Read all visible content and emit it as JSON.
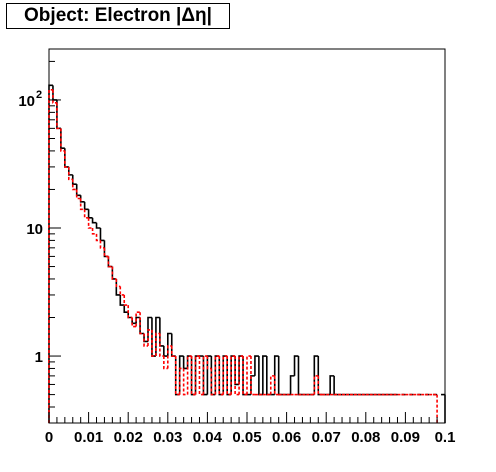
{
  "title": "Object: Electron |Δη|",
  "chart_data": {
    "type": "line",
    "title": "Object: Electron |Δη|",
    "xlabel": "",
    "ylabel": "",
    "xlim": [
      0,
      0.1
    ],
    "ylim": [
      0.3,
      250
    ],
    "yscale": "log",
    "grid": false,
    "x_ticks": [
      "0",
      "0.01",
      "0.02",
      "0.03",
      "0.04",
      "0.05",
      "0.06",
      "0.07",
      "0.08",
      "0.09",
      "0.1"
    ],
    "y_ticks": [
      {
        "value": 1,
        "label": "1"
      },
      {
        "value": 10,
        "label": "10"
      },
      {
        "value": 100,
        "label": "10",
        "exponent": "2"
      }
    ],
    "series": [
      {
        "color": "#000000",
        "style": "solid",
        "x": [
          0.0005,
          0.0015,
          0.0025,
          0.0035,
          0.0045,
          0.0055,
          0.0065,
          0.0075,
          0.0085,
          0.0095,
          0.0105,
          0.0115,
          0.0125,
          0.0135,
          0.0145,
          0.0155,
          0.0165,
          0.0175,
          0.0185,
          0.0195,
          0.0205,
          0.0215,
          0.0225,
          0.0235,
          0.0245,
          0.0255,
          0.0265,
          0.0275,
          0.0285,
          0.0295,
          0.0305,
          0.0315,
          0.0325,
          0.0335,
          0.0345,
          0.0355,
          0.0365,
          0.0375,
          0.0385,
          0.0395,
          0.0405,
          0.0415,
          0.0425,
          0.0435,
          0.0445,
          0.0455,
          0.0465,
          0.0475,
          0.0485,
          0.0495,
          0.0505,
          0.0515,
          0.0525,
          0.0535,
          0.0545,
          0.0555,
          0.0565,
          0.0575,
          0.0585,
          0.0595,
          0.0605,
          0.0615,
          0.0625,
          0.0635,
          0.0645,
          0.0655,
          0.0665,
          0.0675,
          0.0685,
          0.0695,
          0.0705,
          0.0715,
          0.0725,
          0.0735,
          0.0745,
          0.0755,
          0.0765,
          0.0775,
          0.0785,
          0.0795,
          0.0805,
          0.0815,
          0.0825,
          0.0835,
          0.0845,
          0.0855,
          0.0865,
          0.0875,
          0.0895,
          0.0915,
          0.0935,
          0.0955,
          0.0975,
          0.0995
        ],
        "values": [
          130,
          100,
          60,
          42,
          30,
          26,
          22,
          18,
          16,
          14,
          12,
          11,
          10,
          8,
          6,
          5,
          4,
          3,
          2.5,
          2.2,
          2,
          1.8,
          2,
          1.5,
          1.3,
          2,
          1,
          2,
          1.2,
          1,
          1.5,
          1,
          0.5,
          1,
          0.8,
          1,
          0.5,
          1,
          1,
          0.5,
          1,
          0.5,
          1,
          0.5,
          1,
          0.5,
          1,
          0.6,
          1,
          0.5,
          0.5,
          0.7,
          1,
          0.5,
          1,
          0.5,
          0.5,
          1,
          0.5,
          0.5,
          0.5,
          0.7,
          1,
          0.5,
          0.5,
          0.5,
          0.5,
          1,
          0.5,
          0.5,
          0.5,
          0.7,
          0.5,
          0.5,
          0.5,
          0.5,
          0.5,
          0.5,
          0.5,
          0.5,
          0.5,
          0.5,
          0.5,
          0.5,
          0.5,
          0.5,
          0.5,
          0.5,
          0.5,
          0.5,
          0.5,
          0.5,
          0.5,
          0.5
        ]
      },
      {
        "color": "#ff0000",
        "style": "dashed",
        "x": [
          0.0005,
          0.0015,
          0.0025,
          0.0035,
          0.0045,
          0.0055,
          0.0065,
          0.0075,
          0.0085,
          0.0095,
          0.0105,
          0.0115,
          0.0125,
          0.0135,
          0.0145,
          0.0155,
          0.0165,
          0.0175,
          0.0185,
          0.0195,
          0.0205,
          0.0215,
          0.0225,
          0.0235,
          0.0245,
          0.0255,
          0.0265,
          0.0275,
          0.0285,
          0.0295,
          0.0305,
          0.0315,
          0.0325,
          0.0335,
          0.0345,
          0.0355,
          0.0365,
          0.0375,
          0.0385,
          0.0395,
          0.0405,
          0.0415,
          0.0425,
          0.0435,
          0.0445,
          0.0455,
          0.0465,
          0.0475,
          0.0485,
          0.0495,
          0.0505,
          0.0515,
          0.0525,
          0.0535,
          0.0545,
          0.0555,
          0.0565,
          0.0575,
          0.0585,
          0.0595,
          0.0605,
          0.0615,
          0.0625,
          0.0635,
          0.0645,
          0.0655,
          0.0665,
          0.0675,
          0.0685,
          0.0695,
          0.0705,
          0.0715,
          0.0725,
          0.0735,
          0.0745,
          0.0755,
          0.0765,
          0.0775,
          0.0785,
          0.0795,
          0.0805,
          0.0815,
          0.0825,
          0.0835,
          0.0845,
          0.0855,
          0.0865,
          0.0875,
          0.0885,
          0.0895,
          0.0905,
          0.0915,
          0.0925,
          0.0935,
          0.0945,
          0.0955,
          0.0965,
          0.0975
        ],
        "values": [
          120,
          95,
          60,
          40,
          30,
          24,
          20,
          17,
          14,
          12,
          10,
          9,
          8,
          7,
          6,
          5,
          4,
          3.5,
          3,
          2.5,
          2,
          1.7,
          2.2,
          1.5,
          1.2,
          1.6,
          1,
          1.5,
          1,
          0.8,
          1.2,
          1,
          0.5,
          0.8,
          0.5,
          1,
          0.5,
          1,
          0.5,
          1,
          0.8,
          0.5,
          1,
          0.5,
          1,
          0.5,
          1,
          0.5,
          1,
          0.5,
          1,
          0.5,
          0.5,
          0.5,
          0.5,
          0.5,
          0.7,
          0.5,
          0.5,
          0.5,
          0.5,
          0.5,
          0.5,
          0.5,
          0.5,
          0.5,
          0.5,
          0.7,
          0.5,
          0.5,
          0.5,
          0.5,
          0.5,
          0.5,
          0.5,
          0.5,
          0.5,
          0.5,
          0.5,
          0.5,
          0.5,
          0.5,
          0.5,
          0.5,
          0.5,
          0.5,
          0.5,
          0.5,
          0.5,
          0.5,
          0.5,
          0.5,
          0.5,
          0.5,
          0.5,
          0.5,
          0.5,
          0.5
        ]
      }
    ]
  }
}
